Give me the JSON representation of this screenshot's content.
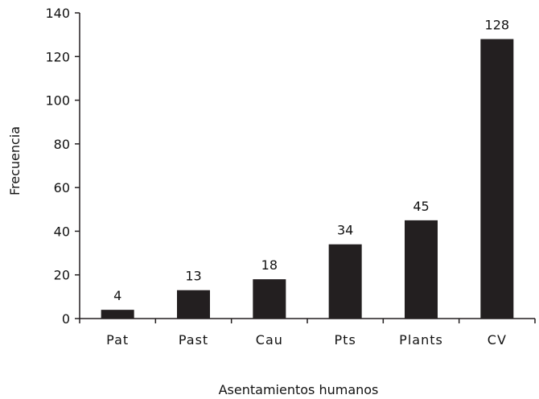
{
  "chart_data": {
    "type": "bar",
    "categories": [
      "Pat",
      "Past",
      "Cau",
      "Pts",
      "Plants",
      "CV"
    ],
    "values": [
      4,
      13,
      18,
      34,
      45,
      128
    ],
    "data_labels": [
      "4",
      "13",
      "18",
      "34",
      "45",
      "128"
    ],
    "xlabel": "Asentamientos humanos",
    "ylabel": "Frecuencia",
    "ylim": [
      0,
      140
    ],
    "yticks": [
      0,
      20,
      40,
      60,
      80,
      100,
      120,
      140
    ],
    "ytick_labels": [
      "0",
      "20",
      "40",
      "60",
      "80",
      "100",
      "120",
      "140"
    ],
    "grid": false,
    "legend": "none",
    "colors": {
      "bar": "#231f20",
      "axis": "#231f20",
      "text": "#111111"
    }
  }
}
